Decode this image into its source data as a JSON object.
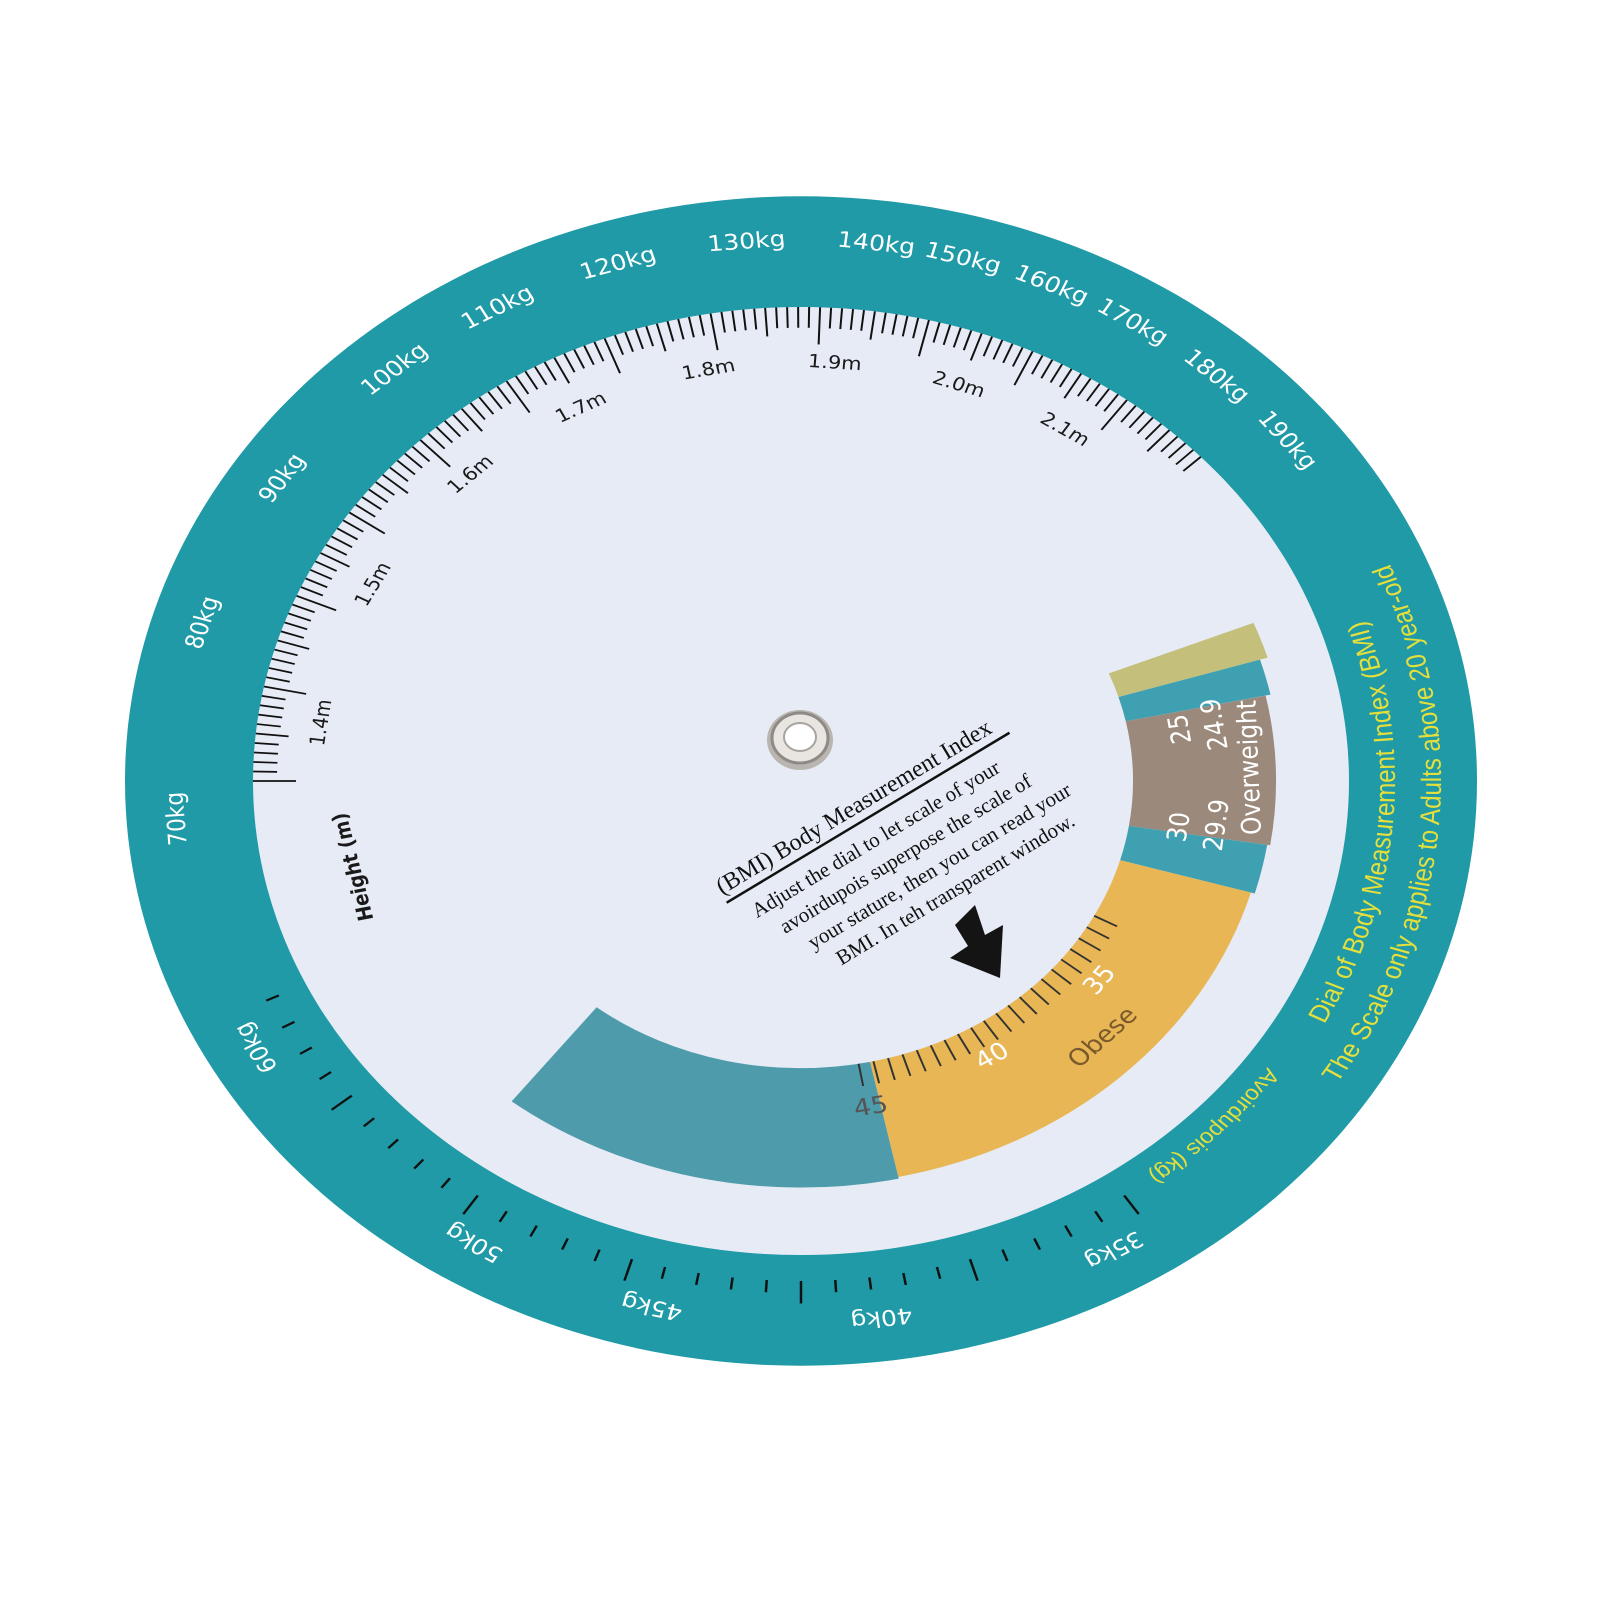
{
  "dial": {
    "weight_labels": [
      "35kg",
      "40kg",
      "45kg",
      "50kg",
      "60kg",
      "70kg",
      "80kg",
      "90kg",
      "100kg",
      "110kg",
      "120kg",
      "130kg",
      "140kg",
      "150kg",
      "160kg",
      "170kg",
      "180kg",
      "190kg"
    ],
    "height_labels": [
      "1.4m",
      "1.5m",
      "1.6m",
      "1.7m",
      "1.8m",
      "1.9m",
      "2.0m",
      "2.1m"
    ],
    "height_axis_label": "Height (m)",
    "bmi_labels": {
      "v25": "25",
      "v249": "24.9",
      "overweight": "Overweight",
      "v299": "29.9",
      "v30": "30",
      "v35": "35",
      "v40": "40",
      "v45": "45",
      "obese": "Obese"
    },
    "rim_title": "Dial of Body Measurement Index (BMI)",
    "rim_note": "The Scale only applies to Adults above 20 year-old",
    "rim_weight_caption": "Avoirdupois (kg)",
    "instructions": {
      "title": "(BMI) Body Measurement Index",
      "lines": [
        "Adjust the dial to let scale of your",
        "avoirdupois superpose the scale of",
        "your stature, then you can read your",
        "BMI. In teh transparent window."
      ]
    },
    "icons": {
      "pointer": "arrow-down-right-icon",
      "center": "eyelet-rivet"
    },
    "colors": {
      "rim": "#1f9aa6",
      "disc": "#e7ebf5",
      "obese": "#e8b654",
      "overweight": "#9b8a7b",
      "normal_edge": "#c4c07c",
      "teal_segment": "#3fa0b2",
      "window_block": "#4e9bab",
      "rim_text": "#e5df3c"
    }
  }
}
